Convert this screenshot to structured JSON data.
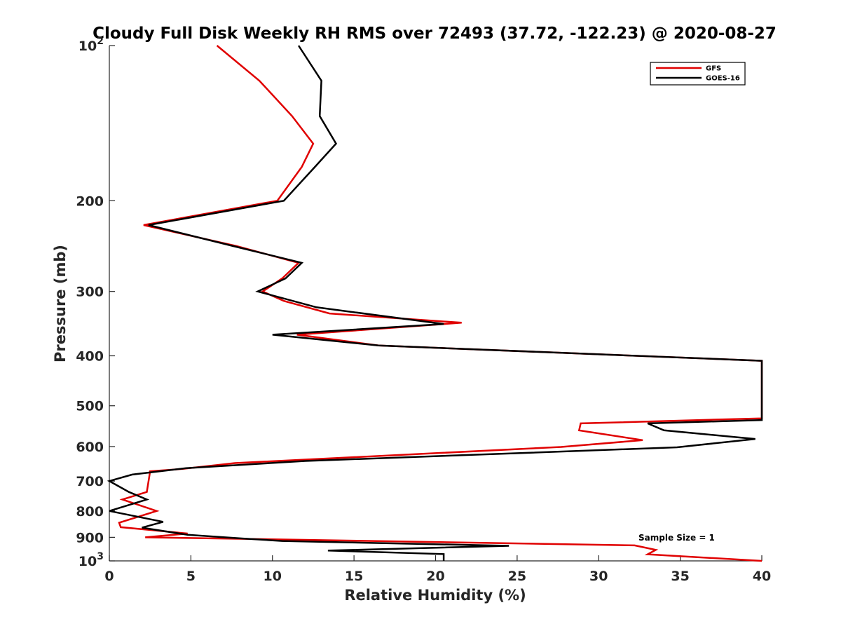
{
  "chart_data": {
    "type": "line",
    "title": "Cloudy Full Disk Weekly RH RMS over 72493 (37.72, -122.23) @ 2020-08-27",
    "xlabel": "Relative Humidity (%)",
    "ylabel": "Pressure (mb)",
    "xlim": [
      0,
      40
    ],
    "ylim": [
      100,
      1000
    ],
    "y_scale": "log",
    "y_reversed": true,
    "x_ticks": [
      0,
      5,
      10,
      15,
      20,
      25,
      30,
      35,
      40
    ],
    "y_ticks": [
      {
        "value": 100,
        "label": "10",
        "sup": "2"
      },
      {
        "value": 200,
        "label": "200",
        "sup": ""
      },
      {
        "value": 300,
        "label": "300",
        "sup": ""
      },
      {
        "value": 400,
        "label": "400",
        "sup": ""
      },
      {
        "value": 500,
        "label": "500",
        "sup": ""
      },
      {
        "value": 600,
        "label": "600",
        "sup": ""
      },
      {
        "value": 700,
        "label": "700",
        "sup": ""
      },
      {
        "value": 800,
        "label": "800",
        "sup": ""
      },
      {
        "value": 900,
        "label": "900",
        "sup": ""
      },
      {
        "value": 1000,
        "label": "10",
        "sup": "3"
      }
    ],
    "grid": false,
    "legend_position": "top-right",
    "annotation": "Sample Size = 1",
    "series": [
      {
        "name": "GFS",
        "color": "#e00000",
        "points": [
          [
            6.6,
            100
          ],
          [
            9.2,
            117
          ],
          [
            11.2,
            137
          ],
          [
            12.5,
            155
          ],
          [
            11.8,
            172
          ],
          [
            10.3,
            200
          ],
          [
            2.1,
            223
          ],
          [
            7.8,
            245
          ],
          [
            11.6,
            264
          ],
          [
            10.6,
            283
          ],
          [
            9.4,
            300
          ],
          [
            10.7,
            313
          ],
          [
            13.5,
            331
          ],
          [
            21.6,
            345
          ],
          [
            11.5,
            364
          ],
          [
            16.5,
            382
          ],
          [
            40.0,
            409
          ],
          [
            40.0,
            529
          ],
          [
            28.9,
            541
          ],
          [
            28.8,
            558
          ],
          [
            32.7,
            583
          ],
          [
            27.7,
            601
          ],
          [
            7.7,
            646
          ],
          [
            4.5,
            663
          ],
          [
            2.5,
            670
          ],
          [
            2.3,
            735
          ],
          [
            0.8,
            760
          ],
          [
            2.9,
            800
          ],
          [
            0.6,
            843
          ],
          [
            0.7,
            860
          ],
          [
            4.8,
            885
          ],
          [
            2.2,
            900
          ],
          [
            8.0,
            906
          ],
          [
            32.2,
            933
          ],
          [
            33.5,
            952
          ],
          [
            33.0,
            971
          ],
          [
            40.0,
            1000
          ]
        ]
      },
      {
        "name": "GOES-16",
        "color": "#000000",
        "points": [
          [
            11.6,
            100
          ],
          [
            13.0,
            117
          ],
          [
            12.9,
            137
          ],
          [
            13.9,
            155
          ],
          [
            12.6,
            172
          ],
          [
            10.7,
            200
          ],
          [
            2.4,
            223
          ],
          [
            7.6,
            245
          ],
          [
            11.8,
            264
          ],
          [
            10.8,
            283
          ],
          [
            9.1,
            300
          ],
          [
            12.7,
            322
          ],
          [
            20.5,
            347
          ],
          [
            10.0,
            364
          ],
          [
            16.5,
            382
          ],
          [
            40.0,
            409
          ],
          [
            40.0,
            533
          ],
          [
            33.0,
            541
          ],
          [
            34.0,
            558
          ],
          [
            39.6,
            580
          ],
          [
            34.8,
            602
          ],
          [
            12.0,
            640
          ],
          [
            4.7,
            661
          ],
          [
            1.4,
            680
          ],
          [
            0.0,
            700
          ],
          [
            1.2,
            735
          ],
          [
            2.3,
            760
          ],
          [
            0.0,
            800
          ],
          [
            3.3,
            840
          ],
          [
            2.0,
            862
          ],
          [
            4.8,
            890
          ],
          [
            8.2,
            905
          ],
          [
            10.6,
            915
          ],
          [
            24.5,
            935
          ],
          [
            13.4,
            955
          ],
          [
            20.5,
            970
          ],
          [
            20.5,
            1000
          ]
        ]
      }
    ]
  }
}
